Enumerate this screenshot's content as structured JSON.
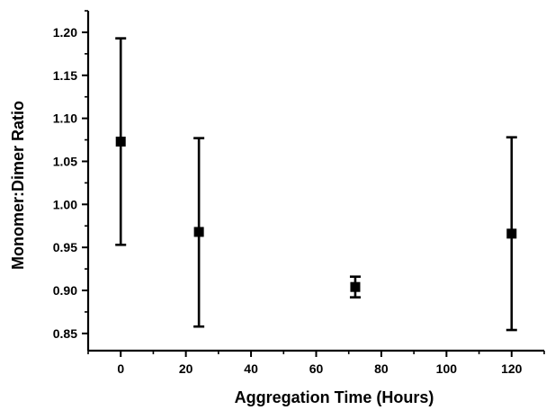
{
  "chart_data": {
    "type": "scatter",
    "title": "",
    "xlabel": "Aggregation Time (Hours)",
    "ylabel": "Monomer:Dimer Ratio",
    "xlim": [
      -10,
      130
    ],
    "ylim": [
      0.83,
      1.225
    ],
    "x_ticks": [
      0,
      20,
      40,
      60,
      80,
      100,
      120
    ],
    "x_tick_labels": [
      "0",
      "20",
      "40",
      "60",
      "80",
      "100",
      "120"
    ],
    "y_ticks": [
      0.85,
      0.9,
      0.95,
      1.0,
      1.05,
      1.1,
      1.15,
      1.2
    ],
    "y_tick_labels": [
      "0.85",
      "0.90",
      "0.95",
      "1.00",
      "1.05",
      "1.10",
      "1.15",
      "1.20"
    ],
    "grid": false,
    "legend": "none",
    "marker": "square",
    "marker_color": "#000000",
    "series": [
      {
        "points": [
          {
            "x": 0,
            "y": 1.073,
            "err_low": 0.953,
            "err_high": 1.193
          },
          {
            "x": 24,
            "y": 0.968,
            "err_low": 0.858,
            "err_high": 1.077
          },
          {
            "x": 72,
            "y": 0.904,
            "err_low": 0.892,
            "err_high": 0.916
          },
          {
            "x": 120,
            "y": 0.966,
            "err_low": 0.854,
            "err_high": 1.078
          }
        ]
      }
    ]
  }
}
